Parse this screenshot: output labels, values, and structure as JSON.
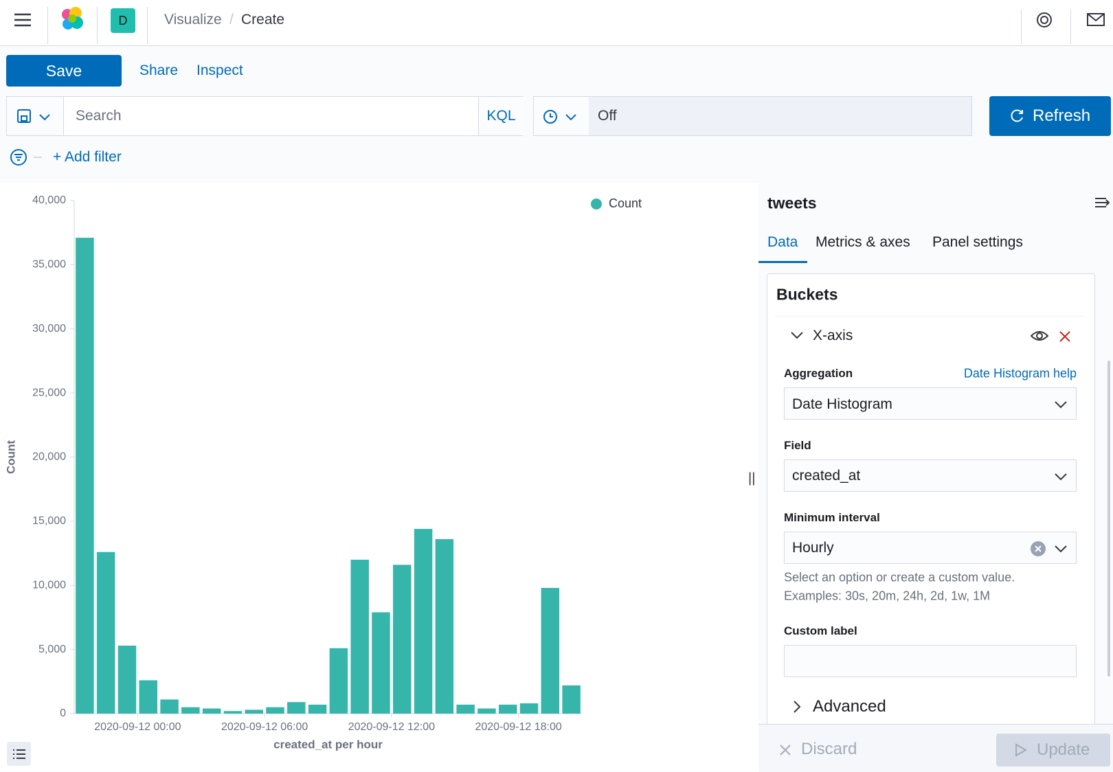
{
  "header": {
    "avatar": "D",
    "breadcrumbs": [
      "Visualize",
      "Create"
    ]
  },
  "toolbar": {
    "save": "Save",
    "links": [
      "Share",
      "Inspect"
    ]
  },
  "query": {
    "placeholder": "Search",
    "language": "KQL",
    "refresh_interval": "Off",
    "refresh": "Refresh",
    "add_filter": "+ Add filter"
  },
  "chart_data": {
    "type": "histogram",
    "y_label": "Count",
    "x_label": "created_at per hour",
    "bins": [
      -3,
      -2,
      -1,
      0,
      1,
      2,
      3,
      4,
      5,
      6,
      7,
      8,
      9,
      10,
      11,
      12,
      13,
      14,
      15,
      16,
      17,
      18,
      19,
      20,
      21
    ],
    "series": [
      {
        "name": "Count",
        "color": "#36b5aa",
        "values": [
          37100,
          12600,
          5300,
          2600,
          1100,
          500,
          400,
          200,
          300,
          500,
          900,
          700,
          5100,
          12000,
          7900,
          11600,
          14400,
          13600,
          700,
          400,
          700,
          800,
          9800,
          2200
        ]
      }
    ],
    "xlim": [
      -3,
      21
    ],
    "xticks": [
      {
        "value": 0,
        "label": "2020-09-12 00:00"
      },
      {
        "value": 6,
        "label": "2020-09-12 06:00"
      },
      {
        "value": 12,
        "label": "2020-09-12 12:00"
      },
      {
        "value": 18,
        "label": "2020-09-12 18:00"
      }
    ],
    "ylim": [
      0,
      40000
    ],
    "yticks": [
      0,
      {
        "value": 5000,
        "label": "5,000"
      },
      {
        "value": 10000,
        "label": "10,000"
      },
      {
        "value": 15000,
        "label": "15,000"
      },
      {
        "value": 20000,
        "label": "20,000"
      },
      {
        "value": 25000,
        "label": "25,000"
      },
      {
        "value": 30000,
        "label": "30,000"
      },
      {
        "value": 35000,
        "label": "35,000"
      },
      {
        "value": 40000,
        "label": "40,000"
      }
    ],
    "legend": "top-right"
  },
  "sidebar": {
    "index": "tweets",
    "tabs": [
      "Data",
      "Metrics & axes",
      "Panel settings"
    ],
    "section": "Buckets",
    "agg_title": "X-axis",
    "help_link": "Date Histogram help",
    "fields": [
      {
        "label": "Aggregation",
        "value": "Date Histogram"
      },
      {
        "label": "Field",
        "value": "created_at"
      },
      {
        "label": "Minimum interval",
        "value": "Hourly"
      }
    ],
    "help": [
      "Select an option or create a custom value.",
      "Examples: 30s, 20m, 24h, 2d, 1w, 1M"
    ],
    "custom_label": "Custom label",
    "advanced": "Advanced",
    "discard": "Discard",
    "update": "Update"
  }
}
